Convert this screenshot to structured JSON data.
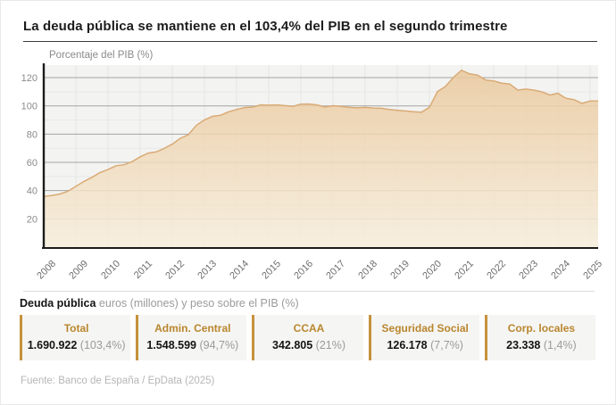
{
  "page": {
    "title": "La deuda pública se mantiene en el 103,4% del PIB en el segundo trimestre",
    "source": "Fuente: Banco de España / EpData (2025)"
  },
  "chart_data": {
    "type": "area",
    "ylabel": "Porcentaje del PIB (%)",
    "xlabel": "",
    "x_start": 2008,
    "x_step": 0.25,
    "x_range": [
      2008,
      2025.25
    ],
    "ylim": [
      0,
      129
    ],
    "grid": true,
    "xticks": [
      2008,
      2009,
      2010,
      2011,
      2012,
      2013,
      2014,
      2015,
      2016,
      2017,
      2018,
      2019,
      2020,
      2021,
      2022,
      2023,
      2024,
      2025
    ],
    "yticks": [
      20,
      40,
      60,
      80,
      100,
      120
    ],
    "yticks_minor": [
      10,
      30,
      50,
      70,
      90,
      110
    ],
    "series": [
      {
        "name": "Deuda pública (% del PIB)",
        "values": [
          35.8,
          36.6,
          37.6,
          39.5,
          43.0,
          46.5,
          49.4,
          52.8,
          54.9,
          57.6,
          58.3,
          60.5,
          63.9,
          66.6,
          67.4,
          69.9,
          72.9,
          77.1,
          79.6,
          86.3,
          90.1,
          92.6,
          93.3,
          95.8,
          97.5,
          98.8,
          99.2,
          100.7,
          100.5,
          100.7,
          100.2,
          99.7,
          101.2,
          101.3,
          100.7,
          99.2,
          100.1,
          99.7,
          98.9,
          98.6,
          98.9,
          98.5,
          98.3,
          97.4,
          96.9,
          96.4,
          95.9,
          95.5,
          99.0,
          110.2,
          113.8,
          120.3,
          125.3,
          122.7,
          121.8,
          118.3,
          117.7,
          116.1,
          115.5,
          111.2,
          111.9,
          111.2,
          109.9,
          107.7,
          108.9,
          105.4,
          104.4,
          101.8,
          103.5,
          103.4
        ]
      }
    ],
    "colors": {
      "plot_bg": "#f3f3f2",
      "grid_major": "#a5a5a3",
      "grid_minor": "#e7e7e5",
      "grid_vertical": "#e4e4e2",
      "axis": "#1c1c1c",
      "fill_top": "#eac89c",
      "fill_bottom": "#f7eedc",
      "line": "#d9ab76",
      "tick_label": "#8b8b8b",
      "x_tick_label": "#6e6e6e"
    }
  },
  "summary": {
    "heading": "Deuda pública",
    "subheading": "euros (millones) y peso sobre el PIB (%)",
    "accent_color": "#c6923c",
    "cards": [
      {
        "label": "Total",
        "value": "1.690.922",
        "pct": "(103,4%)"
      },
      {
        "label": "Admin. Central",
        "value": "1.548.599",
        "pct": "(94,7%)"
      },
      {
        "label": "CCAA",
        "value": "342.805",
        "pct": "(21%)"
      },
      {
        "label": "Seguridad Social",
        "value": "126.178",
        "pct": "(7,7%)"
      },
      {
        "label": "Corp. locales",
        "value": "23.338",
        "pct": "(1,4%)"
      }
    ]
  }
}
